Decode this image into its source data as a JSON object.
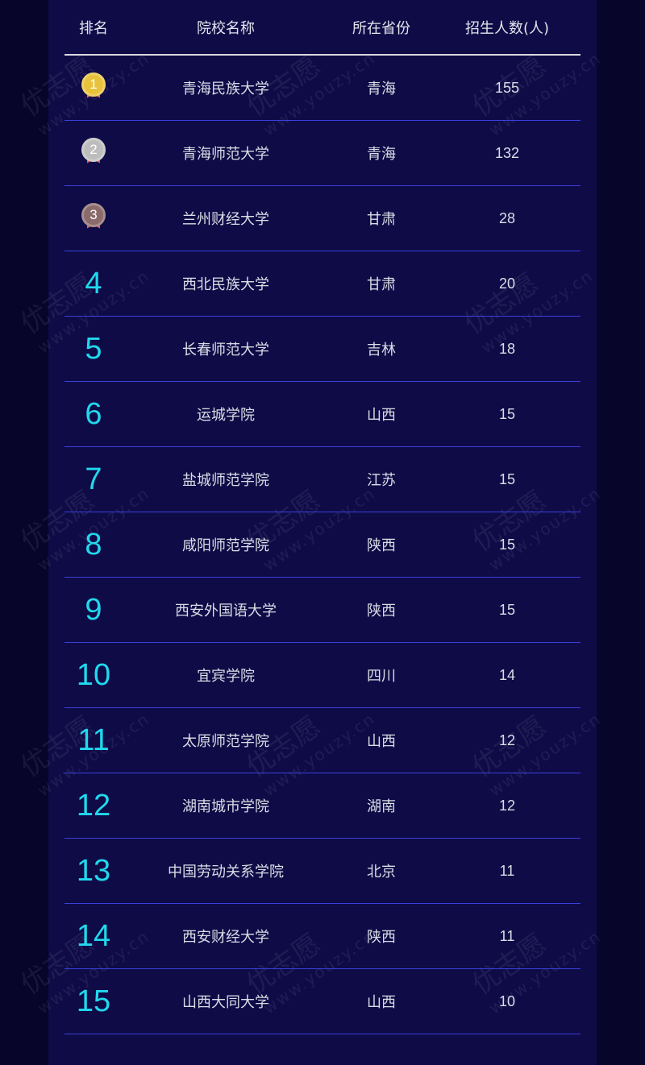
{
  "header": {
    "rank": "排名",
    "name": "院校名称",
    "province": "所在省份",
    "count": "招生人数(人)"
  },
  "medal_colors": {
    "1": "#e8c23a",
    "2": "#bdbdbd",
    "3": "#8a6a6a"
  },
  "rows": [
    {
      "rank": "1",
      "name": "青海民族大学",
      "province": "青海",
      "count": "155"
    },
    {
      "rank": "2",
      "name": "青海师范大学",
      "province": "青海",
      "count": "132"
    },
    {
      "rank": "3",
      "name": "兰州财经大学",
      "province": "甘肃",
      "count": "28"
    },
    {
      "rank": "4",
      "name": "西北民族大学",
      "province": "甘肃",
      "count": "20"
    },
    {
      "rank": "5",
      "name": "长春师范大学",
      "province": "吉林",
      "count": "18"
    },
    {
      "rank": "6",
      "name": "运城学院",
      "province": "山西",
      "count": "15"
    },
    {
      "rank": "7",
      "name": "盐城师范学院",
      "province": "江苏",
      "count": "15"
    },
    {
      "rank": "8",
      "name": "咸阳师范学院",
      "province": "陕西",
      "count": "15"
    },
    {
      "rank": "9",
      "name": "西安外国语大学",
      "province": "陕西",
      "count": "15"
    },
    {
      "rank": "10",
      "name": "宜宾学院",
      "province": "四川",
      "count": "14"
    },
    {
      "rank": "11",
      "name": "太原师范学院",
      "province": "山西",
      "count": "12"
    },
    {
      "rank": "12",
      "name": "湖南城市学院",
      "province": "湖南",
      "count": "12"
    },
    {
      "rank": "13",
      "name": "中国劳动关系学院",
      "province": "北京",
      "count": "11"
    },
    {
      "rank": "14",
      "name": "西安财经大学",
      "province": "陕西",
      "count": "11"
    },
    {
      "rank": "15",
      "name": "山西大同大学",
      "province": "山西",
      "count": "10"
    }
  ],
  "watermark": {
    "brand": "优志愿",
    "url": "www.youzy.cn"
  }
}
